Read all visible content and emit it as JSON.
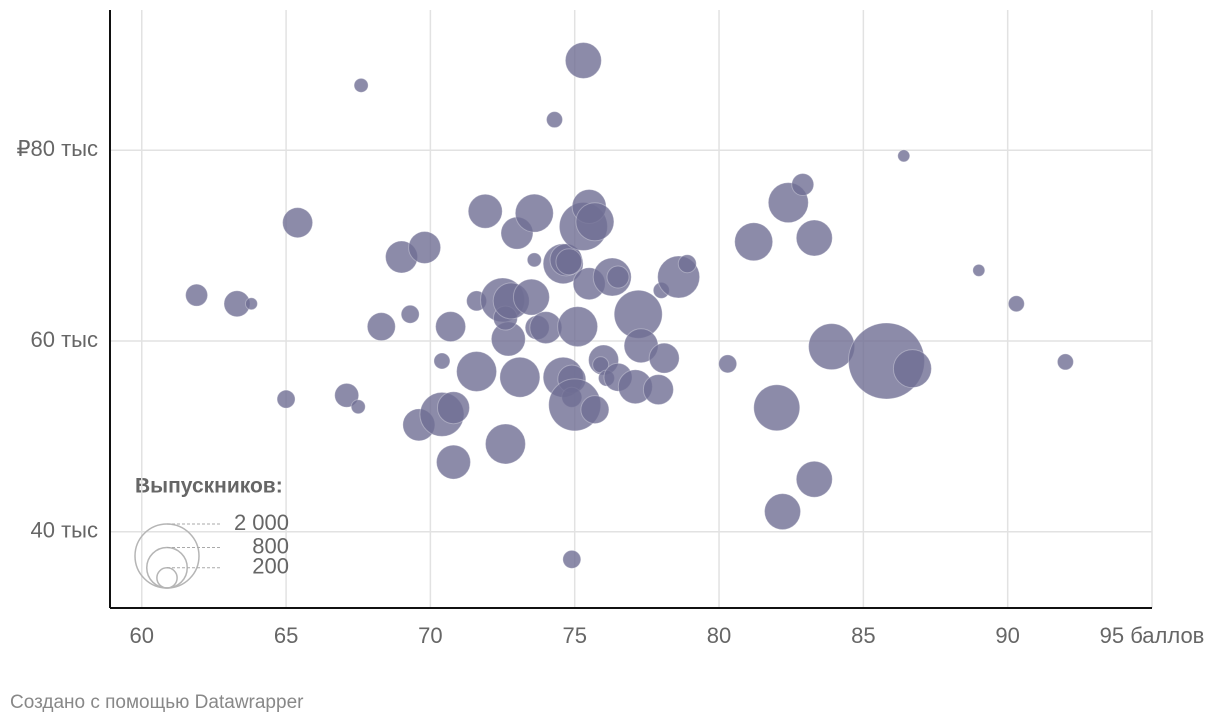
{
  "chart_data": {
    "type": "scatter",
    "xlim": [
      58.9,
      95
    ],
    "ylim": [
      32,
      94.7
    ],
    "xticks": [
      60,
      65,
      70,
      75,
      80,
      85,
      90,
      {
        "value": 95,
        "label": "95 баллов"
      }
    ],
    "yticks": [
      {
        "value": 40,
        "label": "40 тыс"
      },
      {
        "value": 60,
        "label": "60 тыс"
      },
      {
        "value": 80,
        "label": "₽80 тыс"
      }
    ],
    "grid": true,
    "size_legend_title": "Выпускников:",
    "size_legend": [
      {
        "value": 2000,
        "label": "2 000"
      },
      800,
      200
    ],
    "credit": "Создано с помощью Datawrapper",
    "series": [
      {
        "color": "#6f6e94",
        "x": [
          75.3,
          67.6,
          74.3,
          86.4,
          65.4,
          61.9,
          63.3,
          63.8,
          65.0,
          67.1,
          67.5,
          68.3,
          69.3,
          69.0,
          69.8,
          70.4,
          69.6,
          70.4,
          70.8,
          70.8,
          70.7,
          71.6,
          71.9,
          71.6,
          72.5,
          72.6,
          72.7,
          72.6,
          72.8,
          73.0,
          73.1,
          73.5,
          73.6,
          73.7,
          73.6,
          74.0,
          74.6,
          74.7,
          74.6,
          74.9,
          74.9,
          75.0,
          75.1,
          74.8,
          74.9,
          75.3,
          75.5,
          75.7,
          75.5,
          75.7,
          76.0,
          75.9,
          76.1,
          76.5,
          76.3,
          76.5,
          77.2,
          77.3,
          77.1,
          77.9,
          78.1,
          78.0,
          78.6,
          78.9,
          80.3,
          81.2,
          82.0,
          82.2,
          82.4,
          82.9,
          83.3,
          83.3,
          83.9,
          85.8,
          86.7,
          89.0,
          90.3,
          92.0
        ],
        "values": [
          89.4,
          86.8,
          83.2,
          79.4,
          72.4,
          64.8,
          63.9,
          63.9,
          53.9,
          54.3,
          53.1,
          61.5,
          62.8,
          68.8,
          69.8,
          57.9,
          51.2,
          52.3,
          53.0,
          47.3,
          61.5,
          64.2,
          73.6,
          56.8,
          64.3,
          49.2,
          60.2,
          62.4,
          64.2,
          71.3,
          56.2,
          64.6,
          73.4,
          61.4,
          68.5,
          61.4,
          68.1,
          68.5,
          56.2,
          56.0,
          54.1,
          53.3,
          61.5,
          68.3,
          37.1,
          72.0,
          74.1,
          72.5,
          66.0,
          52.8,
          58.0,
          57.5,
          56.1,
          56.2,
          66.7,
          66.7,
          62.8,
          59.5,
          55.2,
          54.9,
          58.2,
          65.3,
          66.7,
          68.1,
          57.6,
          70.4,
          53.0,
          42.1,
          74.5,
          76.4,
          70.8,
          45.5,
          59.4,
          57.9,
          57.1,
          67.4,
          63.9,
          57.8
        ],
        "sizes": [
          633,
          96,
          125,
          70,
          440,
          236,
          330,
          70,
          158,
          281,
          96,
          383,
          158,
          500,
          500,
          125,
          500,
          945,
          500,
          564,
          440,
          195,
          564,
          781,
          945,
          781,
          564,
          281,
          633,
          500,
          781,
          633,
          705,
          281,
          96,
          500,
          781,
          500,
          781,
          383,
          195,
          1320,
          781,
          330,
          158,
          1125,
          564,
          705,
          500,
          383,
          440,
          125,
          125,
          383,
          705,
          236,
          1125,
          564,
          564,
          440,
          440,
          125,
          861,
          158,
          158,
          705,
          1033,
          633,
          781,
          236,
          633,
          633,
          1033,
          2820,
          705,
          70,
          125,
          125
        ]
      }
    ]
  }
}
